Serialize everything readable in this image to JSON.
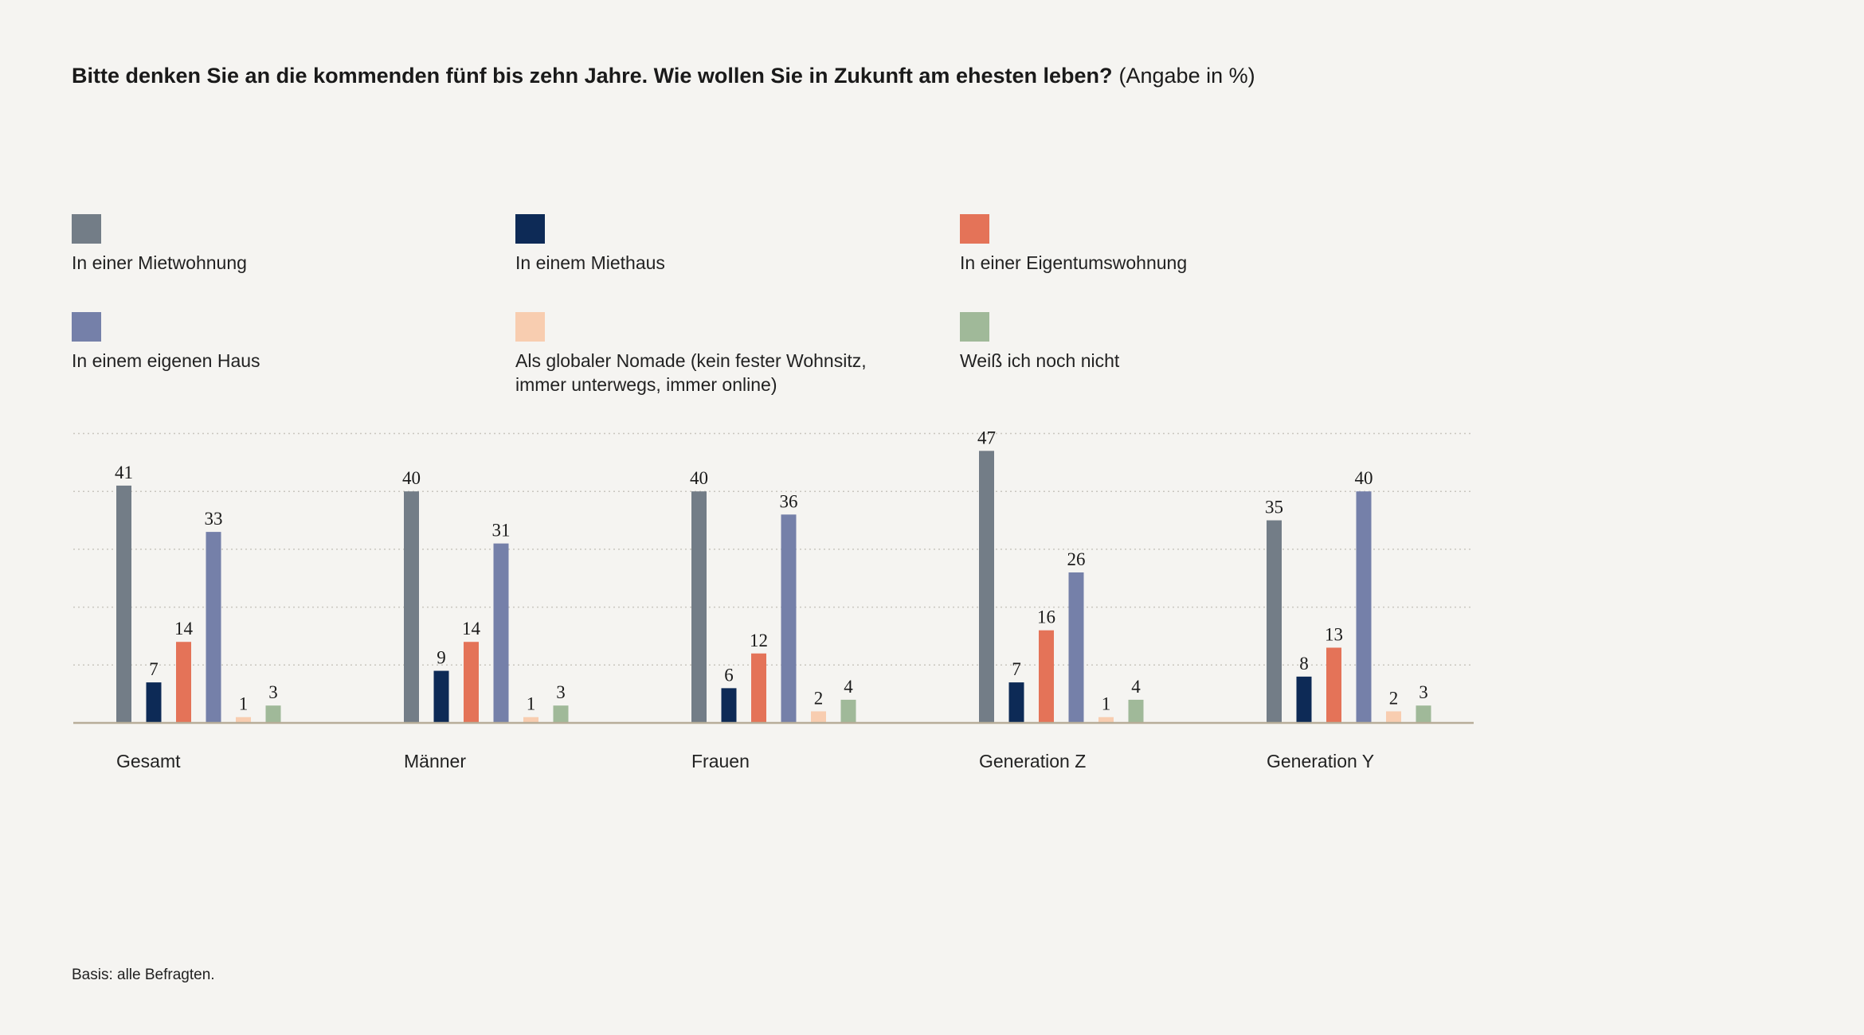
{
  "title": {
    "question": "Bitte denken Sie an die kommenden fünf bis zehn Jahre. Wie wollen Sie in Zukunft am ehesten leben?",
    "unit": "(Angabe in %)"
  },
  "legend": [
    {
      "label": "In einer Mietwohnung",
      "color": "#737d87"
    },
    {
      "label": "In einem Miethaus",
      "color": "#0d2a56"
    },
    {
      "label": "In einer Eigentumswohnung",
      "color": "#e47358"
    },
    {
      "label": "In einem eigenen Haus",
      "color": "#7580a9"
    },
    {
      "label": "Als globaler Nomade (kein fester Wohnsitz, immer unterwegs, immer online)",
      "color": "#f8cdb0"
    },
    {
      "label": "Weiß ich noch nicht",
      "color": "#a0b999"
    }
  ],
  "chart_data": {
    "type": "bar",
    "categories": [
      "Gesamt",
      "Männer",
      "Frauen",
      "Generation Z",
      "Generation Y"
    ],
    "series": [
      {
        "name": "In einer Mietwohnung",
        "color": "#737d87",
        "values": [
          41,
          40,
          40,
          47,
          35
        ]
      },
      {
        "name": "In einem Miethaus",
        "color": "#0d2a56",
        "values": [
          7,
          9,
          6,
          7,
          8
        ]
      },
      {
        "name": "In einer Eigentumswohnung",
        "color": "#e47358",
        "values": [
          14,
          14,
          12,
          16,
          13
        ]
      },
      {
        "name": "In einem eigenen Haus",
        "color": "#7580a9",
        "values": [
          33,
          31,
          36,
          26,
          40
        ]
      },
      {
        "name": "Als globaler Nomade (kein fester Wohnsitz, immer unterwegs, immer online)",
        "color": "#f8cdb0",
        "values": [
          1,
          1,
          2,
          1,
          2
        ]
      },
      {
        "name": "Weiß ich noch nicht",
        "color": "#a0b999",
        "values": [
          3,
          3,
          4,
          4,
          3
        ]
      }
    ],
    "ylim": [
      0,
      50
    ],
    "gridlines": [
      10,
      20,
      30,
      40,
      50
    ],
    "grid": true,
    "legend_position": "top"
  },
  "footnote": "Basis: alle Befragten."
}
